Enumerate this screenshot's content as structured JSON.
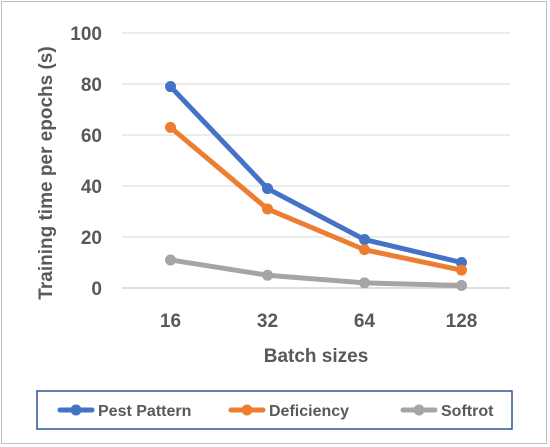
{
  "chart_data": {
    "type": "line",
    "categories": [
      "16",
      "32",
      "64",
      "128"
    ],
    "series": [
      {
        "name": "Pest Pattern",
        "values": [
          79,
          39,
          19,
          10
        ],
        "color": "#4472C4"
      },
      {
        "name": "Deficiency",
        "values": [
          63,
          31,
          15,
          7
        ],
        "color": "#ED7D31"
      },
      {
        "name": "Softrot",
        "values": [
          11,
          5,
          2,
          1
        ],
        "color": "#A5A5A5"
      }
    ],
    "yticks": [
      "0",
      "20",
      "40",
      "60",
      "80",
      "100"
    ],
    "ylim": [
      0,
      100
    ],
    "xlabel": "Batch sizes",
    "ylabel": "Training time per epochs (s)",
    "grid": true,
    "legend_position": "bottom"
  }
}
